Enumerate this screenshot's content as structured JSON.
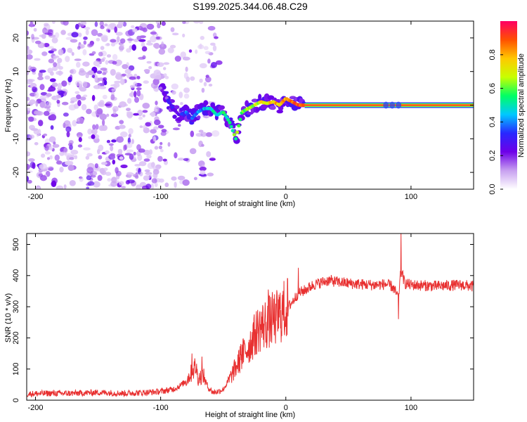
{
  "title": "S199.2025.344.06.48.C29",
  "chart_data": [
    {
      "type": "heatmap",
      "xlabel": "Height of straight line (km)",
      "ylabel": "Frequency (Hz)",
      "xlim": [
        -207,
        150
      ],
      "ylim": [
        -25,
        25
      ],
      "xticks": [
        -200,
        -100,
        0,
        100
      ],
      "yticks": [
        -20,
        -10,
        0,
        10,
        20
      ],
      "colorbar": {
        "label": "Normalized spectral amplitude",
        "range": [
          0,
          1
        ],
        "ticks": [
          0.0,
          0.2,
          0.4,
          0.6,
          0.8
        ],
        "tick_labels": [
          "0.0",
          "0.2",
          "0.4",
          "0.6",
          "0.8"
        ],
        "colors": [
          "#ffffff",
          "#c8a0f0",
          "#6e00e8",
          "#2828ff",
          "#00c8ff",
          "#00ff64",
          "#c8ff00",
          "#ffc800",
          "#ff5000",
          "#ff0064"
        ]
      },
      "noise_region_x": [
        -207,
        -50
      ],
      "ridge": {
        "x": [
          -100,
          -95,
          -90,
          -85,
          -80,
          -75,
          -70,
          -65,
          -60,
          -55,
          -50,
          -45,
          -40,
          -35,
          -30,
          -25,
          -20,
          -15,
          -10,
          -5,
          0,
          5,
          10,
          15,
          20,
          150
        ],
        "y": [
          5,
          2,
          -1,
          -3,
          -2,
          -4,
          -2,
          -1,
          -1,
          -3,
          -2,
          -5,
          -10,
          -2,
          -1,
          0,
          1,
          0.5,
          1,
          0,
          2,
          1,
          0,
          0,
          0,
          0
        ],
        "peak_amplitude": 0.95
      }
    },
    {
      "type": "line",
      "xlabel": "Height of straight line (km)",
      "ylabel": "SNR (10 * v/v)",
      "xlim": [
        -207,
        150
      ],
      "ylim": [
        0,
        535
      ],
      "xticks": [
        -200,
        -100,
        0,
        100
      ],
      "yticks": [
        0,
        100,
        200,
        300,
        400,
        500
      ],
      "color": "#e83030",
      "series": [
        {
          "name": "SNR",
          "x": [
            -207,
            -190,
            -170,
            -150,
            -130,
            -110,
            -100,
            -90,
            -85,
            -80,
            -75,
            -72,
            -70,
            -66,
            -62,
            -58,
            -54,
            -50,
            -46,
            -42,
            -38,
            -34,
            -30,
            -26,
            -22,
            -18,
            -14,
            -10,
            -6,
            -2,
            2,
            6,
            10,
            14,
            18,
            22,
            26,
            30,
            35,
            40,
            45,
            50,
            60,
            70,
            80,
            85,
            90,
            92,
            95,
            100,
            110,
            120,
            130,
            140,
            150
          ],
          "y": [
            20,
            22,
            22,
            25,
            22,
            25,
            28,
            35,
            45,
            60,
            90,
            110,
            70,
            80,
            40,
            25,
            28,
            35,
            60,
            90,
            120,
            150,
            170,
            200,
            230,
            240,
            250,
            260,
            270,
            285,
            300,
            320,
            345,
            350,
            360,
            370,
            375,
            380,
            385,
            380,
            378,
            375,
            372,
            370,
            372,
            365,
            330,
            420,
            375,
            370,
            368,
            366,
            368,
            370,
            365
          ],
          "spikes": [
            {
              "x": -75,
              "y": 150
            },
            {
              "x": -67,
              "y": 140
            },
            {
              "x": -36,
              "y": 180
            },
            {
              "x": -26,
              "y": 250
            },
            {
              "x": -14,
              "y": 355
            },
            {
              "x": -8,
              "y": 310
            },
            {
              "x": 10,
              "y": 425
            },
            {
              "x": 92,
              "y": 535
            },
            {
              "x": 90,
              "y": 260
            }
          ]
        }
      ]
    }
  ]
}
